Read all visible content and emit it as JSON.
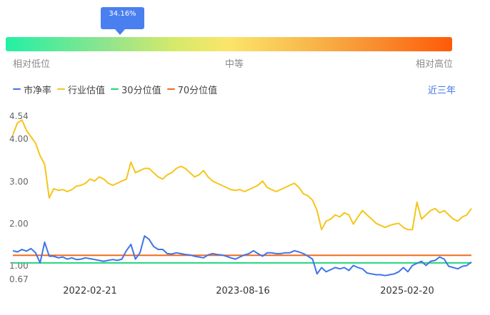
{
  "gauge": {
    "percentile": "34.16%",
    "labels": {
      "low": "相对低位",
      "mid": "中等",
      "high": "相对高位"
    }
  },
  "legend": [
    {
      "label": "市净率",
      "color": "#3f74e8"
    },
    {
      "label": "行业估值",
      "color": "#f5c518"
    },
    {
      "label": "30分位值",
      "color": "#1fd47a"
    },
    {
      "label": "70分位值",
      "color": "#f26b1d"
    }
  ],
  "period_link": "近三年",
  "chart_data": {
    "type": "line",
    "y_ticks": [
      "4.54",
      "4.00",
      "3.00",
      "2.00",
      "1.00",
      "0.67"
    ],
    "x_ticks": [
      "2022-02-21",
      "2023-08-16",
      "2025-02-20"
    ],
    "ylim": [
      0.67,
      4.54
    ],
    "series": [
      {
        "name": "市净率",
        "color": "#3f74e8",
        "values": [
          1.35,
          1.32,
          1.38,
          1.34,
          1.4,
          1.3,
          1.06,
          1.55,
          1.22,
          1.22,
          1.18,
          1.2,
          1.15,
          1.18,
          1.14,
          1.15,
          1.18,
          1.16,
          1.14,
          1.12,
          1.1,
          1.12,
          1.14,
          1.12,
          1.15,
          1.35,
          1.5,
          1.15,
          1.3,
          1.7,
          1.62,
          1.45,
          1.38,
          1.38,
          1.28,
          1.27,
          1.3,
          1.28,
          1.26,
          1.25,
          1.22,
          1.2,
          1.18,
          1.25,
          1.28,
          1.26,
          1.25,
          1.22,
          1.18,
          1.15,
          1.2,
          1.25,
          1.28,
          1.35,
          1.28,
          1.22,
          1.3,
          1.3,
          1.28,
          1.28,
          1.3,
          1.3,
          1.35,
          1.32,
          1.28,
          1.22,
          1.15,
          0.8,
          0.95,
          0.85,
          0.9,
          0.95,
          0.92,
          0.95,
          0.88,
          1.0,
          0.95,
          0.92,
          0.82,
          0.8,
          0.78,
          0.78,
          0.76,
          0.78,
          0.8,
          0.85,
          0.95,
          0.85,
          1.0,
          1.05,
          1.1,
          1.0,
          1.1,
          1.12,
          1.2,
          1.15,
          0.98,
          0.95,
          0.92,
          0.98,
          1.0,
          1.08
        ]
      },
      {
        "name": "行业估值",
        "color": "#f5c518",
        "values": [
          4.1,
          4.38,
          4.45,
          4.2,
          4.05,
          3.9,
          3.6,
          3.4,
          2.6,
          2.82,
          2.78,
          2.8,
          2.75,
          2.8,
          2.88,
          2.9,
          2.95,
          3.05,
          3.0,
          3.1,
          3.05,
          2.95,
          2.9,
          2.95,
          3.0,
          3.05,
          3.45,
          3.2,
          3.25,
          3.3,
          3.3,
          3.2,
          3.1,
          3.05,
          3.15,
          3.2,
          3.3,
          3.35,
          3.3,
          3.2,
          3.1,
          3.15,
          3.25,
          3.1,
          3.0,
          2.95,
          2.9,
          2.85,
          2.8,
          2.78,
          2.8,
          2.75,
          2.8,
          2.85,
          2.9,
          3.0,
          2.85,
          2.8,
          2.75,
          2.8,
          2.85,
          2.9,
          2.95,
          2.85,
          2.7,
          2.65,
          2.55,
          2.3,
          1.85,
          2.05,
          2.1,
          2.2,
          2.15,
          2.25,
          2.2,
          1.98,
          2.15,
          2.3,
          2.2,
          2.1,
          2.0,
          1.95,
          1.9,
          1.95,
          1.98,
          2.0,
          1.9,
          1.85,
          1.85,
          2.5,
          2.1,
          2.2,
          2.3,
          2.35,
          2.25,
          2.3,
          2.2,
          2.1,
          2.05,
          2.15,
          2.2,
          2.35
        ]
      },
      {
        "name": "30分位值",
        "color": "#1fd47a",
        "values": [
          1.06,
          1.06
        ]
      },
      {
        "name": "70分位值",
        "color": "#f26b1d",
        "values": [
          1.24,
          1.24
        ]
      }
    ]
  }
}
